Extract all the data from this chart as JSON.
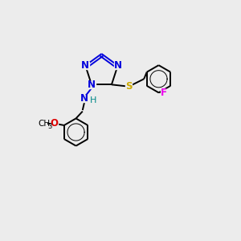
{
  "background_color": "#ececec",
  "atom_colors": {
    "C": "#000000",
    "N": "#0000dd",
    "S": "#ccaa00",
    "O": "#dd0000",
    "F": "#ee00ee",
    "H": "#008888"
  },
  "bond_color": "#000000",
  "figsize": [
    3.0,
    3.0
  ],
  "dpi": 100,
  "xlim": [
    0,
    10
  ],
  "ylim": [
    0,
    10
  ]
}
